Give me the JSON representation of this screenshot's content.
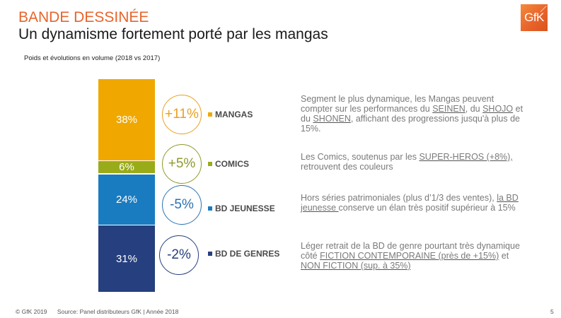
{
  "header": {
    "title": "BANDE DESSINÉE",
    "subtitle": "Un dynamisme fortement porté par les mangas",
    "logo_text": "GfK"
  },
  "caption": "Poids et évolutions en volume (2018 vs 2017)",
  "chart_data": {
    "type": "bar",
    "stacked": true,
    "title": "Poids et évolutions en volume (2018 vs 2017)",
    "categories": [
      "MANGAS",
      "COMICS",
      "BD JEUNESSE",
      "BD DE GENRES"
    ],
    "values": [
      38,
      6,
      24,
      31
    ],
    "value_labels": [
      "38%",
      "6%",
      "24%",
      "31%"
    ],
    "evolution": [
      11,
      5,
      -5,
      -2
    ],
    "evolution_labels": [
      "+11%",
      "+5%",
      "-5%",
      "-2%"
    ],
    "colors": [
      "#f0a800",
      "#9aab1a",
      "#1a7cc0",
      "#263f7e"
    ],
    "evolution_colors": [
      "#e8a020",
      "#8f9a2a",
      "#2a72b0",
      "#263f7e"
    ],
    "unit": "%",
    "legend": "right"
  },
  "descriptions": [
    {
      "parts": [
        {
          "t": "Segment le plus dynamique, les Mangas peuvent compter sur les performances du "
        },
        {
          "t": "SEINEN",
          "u": true
        },
        {
          "t": ", du "
        },
        {
          "t": "SHOJO",
          "u": true
        },
        {
          "t": " et du "
        },
        {
          "t": "SHONEN",
          "u": true
        },
        {
          "t": ", affichant des progressions jusqu'à plus de 15%."
        }
      ]
    },
    {
      "parts": [
        {
          "t": "Les Comics, soutenus par les "
        },
        {
          "t": "SUPER-HEROS (+8%),",
          "u": true
        },
        {
          "t": " retrouvent des couleurs"
        }
      ]
    },
    {
      "parts": [
        {
          "t": "Hors séries patrimoniales (plus d’1/3 des ventes), "
        },
        {
          "t": "la BD jeunesse ",
          "u": true
        },
        {
          "t": "conserve un élan très positif supérieur à 15%"
        }
      ]
    },
    {
      "parts": [
        {
          "t": "Léger retrait de la BD de genre pourtant très dynamique côté "
        },
        {
          "t": "FICTION CONTEMPORAINE (près de +15%)",
          "u": true
        },
        {
          "t": " et "
        },
        {
          "t": "NON FICTION (sup. à 35%)",
          "u": true
        }
      ]
    }
  ],
  "footer": {
    "copyright": "© GfK 2019",
    "source": "Source: Panel distributeurs GfK | Année 2018",
    "page_number": "5"
  }
}
